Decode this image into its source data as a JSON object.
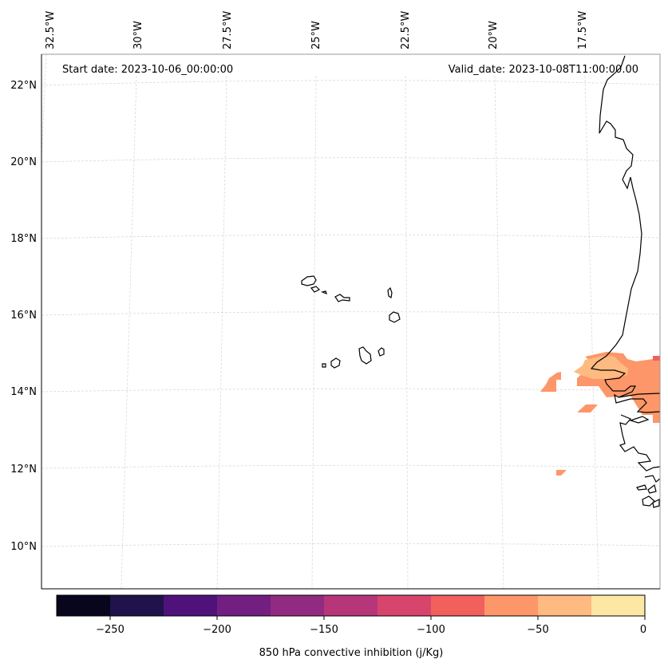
{
  "map": {
    "start_label": "Start date: 2023-10-06_00:00:00",
    "valid_label": "Valid_date: 2023-10-08T11:00:00.00",
    "lon_labels": [
      "32.5°W",
      "30°W",
      "27.5°W",
      "25°W",
      "22.5°W",
      "20°W",
      "17.5°W"
    ],
    "lat_labels": [
      "22°N",
      "20°N",
      "18°N",
      "16°N",
      "14°N",
      "12°N",
      "10°N"
    ],
    "gridlines": true
  },
  "colorbar": {
    "label": "850 hPa convective inhibition (j/Kg)",
    "ticks": [
      "−250",
      "−200",
      "−150",
      "−100",
      "−50",
      "0"
    ],
    "levels": [
      -275,
      -250,
      -225,
      -200,
      -175,
      -150,
      -125,
      -100,
      -75,
      -50,
      -25,
      0
    ],
    "colors": [
      "#07061c",
      "#20124a",
      "#4f127b",
      "#721f81",
      "#912b81",
      "#b63679",
      "#d8456c",
      "#f1605d",
      "#fd9668",
      "#feba80",
      "#fde7a5"
    ]
  },
  "field": {
    "shaded_values": [
      "-75 to -50",
      "-50 to -25",
      "-100 to -75"
    ]
  }
}
